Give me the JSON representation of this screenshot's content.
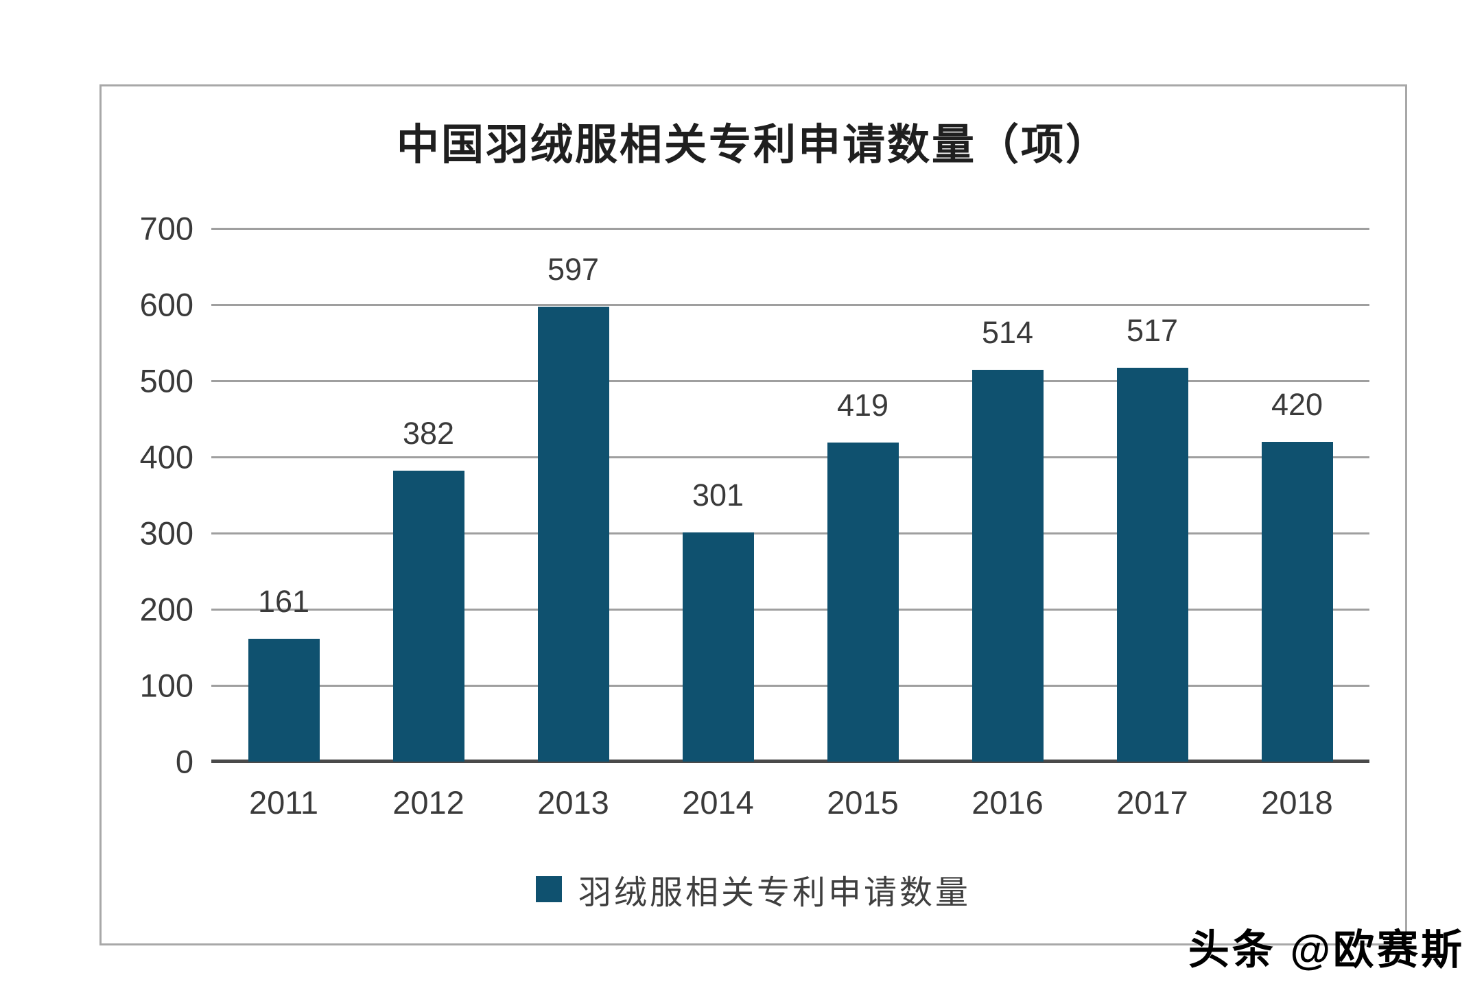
{
  "chart_data": {
    "type": "bar",
    "title": "中国羽绒服相关专利申请数量（项）",
    "categories": [
      "2011",
      "2012",
      "2013",
      "2014",
      "2015",
      "2016",
      "2017",
      "2018"
    ],
    "values": [
      161,
      382,
      597,
      301,
      419,
      514,
      517,
      420
    ],
    "series_name": "羽绒服相关专利申请数量",
    "xlabel": "",
    "ylabel": "",
    "ylim": [
      0,
      700
    ],
    "yticks": [
      0,
      100,
      200,
      300,
      400,
      500,
      600,
      700
    ],
    "grid": true,
    "legend_position": "bottom",
    "bar_color": "#0f516f"
  },
  "legend": {
    "label": "羽绒服相关专利申请数量"
  },
  "watermark": {
    "text": "头条 @欧赛斯"
  },
  "colors": {
    "bar": "#0f516f",
    "gridline": "#9f9f9f",
    "axis_line": "#4a4a4a",
    "box_border": "#a8a8a8",
    "label_text": "#3a3a3a",
    "title_text": "#1f1f1f"
  }
}
